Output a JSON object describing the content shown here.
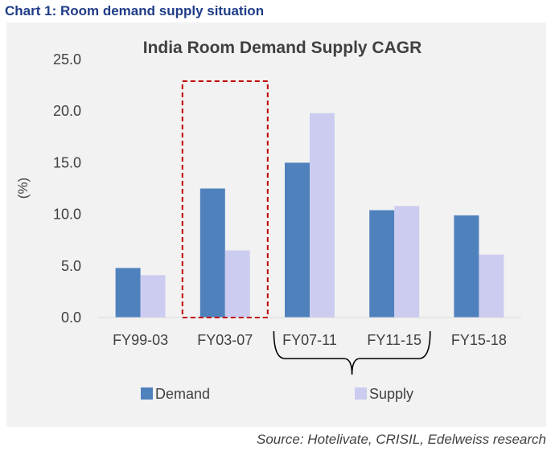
{
  "heading": "Chart 1: Room demand supply situation",
  "source": "Source: Hotelivate, CRISIL, Edelweiss research",
  "colors": {
    "heading": "#1f3c88",
    "demand": "#4f81bd",
    "supply": "#ccccf0",
    "highlight_box": "#c00000",
    "panel_bg": "#f2f2f2"
  },
  "chart_data": {
    "type": "bar",
    "title": "India Room Demand Supply CAGR",
    "ylabel": "(%)",
    "xlabel": "",
    "ylim": [
      0,
      25
    ],
    "yticks": [
      "0.0",
      "5.0",
      "10.0",
      "15.0",
      "20.0",
      "25.0"
    ],
    "grid": false,
    "legend_position": "bottom",
    "categories": [
      "FY99-03",
      "FY03-07",
      "FY07-11",
      "FY11-15",
      "FY15-18"
    ],
    "series": [
      {
        "name": "Demand",
        "values": [
          4.8,
          12.5,
          15.0,
          10.4,
          9.9
        ]
      },
      {
        "name": "Supply",
        "values": [
          4.1,
          6.5,
          19.8,
          10.8,
          6.1
        ]
      }
    ],
    "annotations": {
      "highlight_category": "FY03-07",
      "bracket_categories": [
        "FY07-11",
        "FY11-15"
      ]
    }
  }
}
